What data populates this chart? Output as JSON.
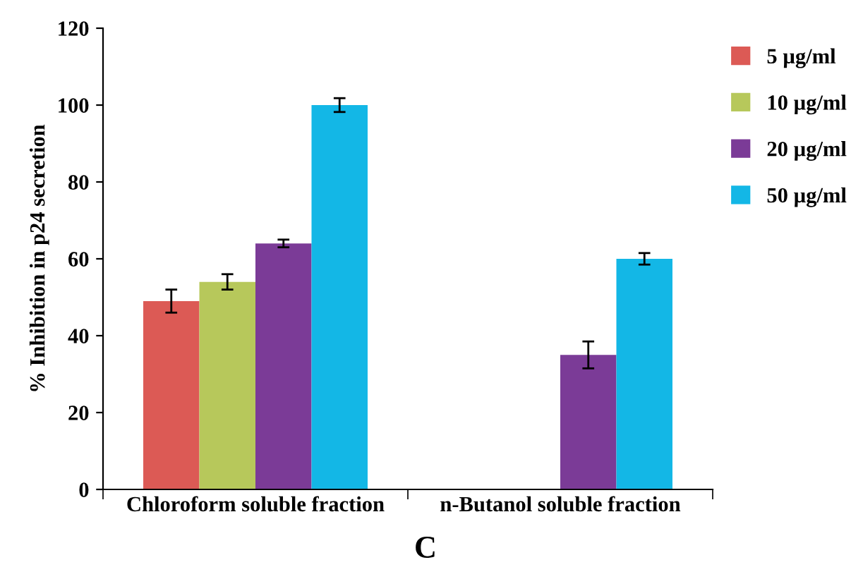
{
  "chart_data": {
    "type": "bar",
    "ylabel": "% Inhibition in p24 secretion",
    "categories": [
      "Chloroform soluble fraction",
      "n-Butanol soluble fraction"
    ],
    "series": [
      {
        "name": "5 µg/ml",
        "color": "#dc5a55",
        "values": [
          49,
          null
        ],
        "errors": [
          3,
          null
        ]
      },
      {
        "name": "10 µg/ml",
        "color": "#b7c85b",
        "values": [
          54,
          null
        ],
        "errors": [
          2,
          null
        ]
      },
      {
        "name": "20 µg/ml",
        "color": "#7b3b97",
        "values": [
          64,
          35
        ],
        "errors": [
          1,
          3.5
        ]
      },
      {
        "name": "50 µg/ml",
        "color": "#13b7e6",
        "values": [
          100,
          60
        ],
        "errors": [
          1.8,
          1.5
        ]
      }
    ],
    "ylim": [
      0,
      120
    ],
    "yticks": [
      0,
      20,
      40,
      60,
      80,
      100,
      120
    ],
    "grid": false,
    "legend": "top right",
    "annotations": [
      "C"
    ]
  }
}
